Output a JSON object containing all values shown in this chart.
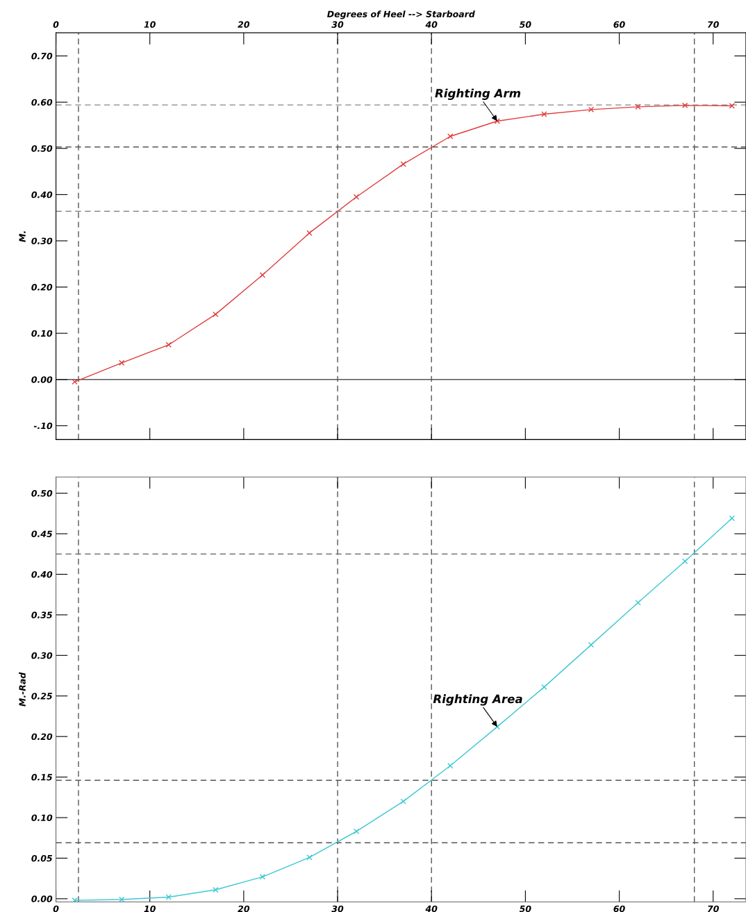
{
  "chart_data": [
    {
      "type": "line",
      "x2label": "Degrees of Heel --> Starboard",
      "ylabel": "M.",
      "x": [
        2,
        7,
        12,
        17,
        22,
        27,
        32,
        37,
        42,
        47,
        52,
        57,
        62,
        67,
        72
      ],
      "series": [
        {
          "color": "#e03c3c",
          "values": [
            -0.005,
            0.036,
            0.075,
            0.141,
            0.226,
            0.317,
            0.395,
            0.466,
            0.526,
            0.559,
            0.574,
            0.584,
            0.59,
            0.593,
            0.592
          ]
        }
      ],
      "marker": "cross",
      "xlim": [
        0,
        73.5
      ],
      "x2lim": [
        0,
        73.5
      ],
      "x2ticks": [
        0,
        10,
        20,
        30,
        40,
        50,
        60,
        70
      ],
      "ylim": [
        -0.13,
        0.75
      ],
      "yticks": [
        {
          "value": -0.1,
          "label": "-.10"
        },
        {
          "value": 0,
          "label": "0.00"
        },
        {
          "value": 0.1,
          "label": "0.10"
        },
        {
          "value": 0.2,
          "label": "0.20"
        },
        {
          "value": 0.3,
          "label": "0.30"
        },
        {
          "value": 0.4,
          "label": "0.40"
        },
        {
          "value": 0.5,
          "label": "0.50"
        },
        {
          "value": 0.6,
          "label": "0.60"
        },
        {
          "value": 0.7,
          "label": "0.70"
        }
      ],
      "tick_labels": "y",
      "ref_lines": [
        {
          "axis": "x",
          "value": 2.4,
          "color": "#555555",
          "line_style": "dashed"
        },
        {
          "axis": "x",
          "value": 30,
          "color": "#555555",
          "line_style": "dashed"
        },
        {
          "axis": "x",
          "value": 40,
          "color": "#555555",
          "line_style": "dashed"
        },
        {
          "axis": "x",
          "value": 68,
          "color": "#555555",
          "line_style": "dashed"
        },
        {
          "axis": "y",
          "value": 0.594,
          "color": "#999999",
          "line_style": "dashed"
        },
        {
          "axis": "y",
          "value": 0.503,
          "color": "#555555",
          "line_style": "dashed"
        },
        {
          "axis": "y",
          "value": 0.364,
          "color": "#777777",
          "line_style": "dashed"
        },
        {
          "axis": "y",
          "value": 0,
          "color": "#555555",
          "line_style": "solid"
        }
      ],
      "annotations": [
        {
          "text": "Righting Arm",
          "x": 47,
          "y": 0.559
        }
      ]
    },
    {
      "type": "line",
      "ylabel": "M.-Rad",
      "x": [
        2,
        7,
        12,
        17,
        22,
        27,
        32,
        37,
        42,
        47,
        52,
        57,
        62,
        67,
        72
      ],
      "series": [
        {
          "color": "#3cc8d2",
          "values": [
            -0.002,
            -0.001,
            0.002,
            0.011,
            0.027,
            0.051,
            0.083,
            0.12,
            0.164,
            0.212,
            0.261,
            0.313,
            0.365,
            0.416,
            0.469
          ]
        }
      ],
      "marker": "cross",
      "xlim": [
        0,
        73.5
      ],
      "xticks": [
        0,
        10,
        20,
        30,
        40,
        50,
        60,
        70
      ],
      "ylim": [
        -0.004,
        0.52
      ],
      "yticks": [
        {
          "value": 0,
          "label": "0.00"
        },
        {
          "value": 0.05,
          "label": "0.05"
        },
        {
          "value": 0.1,
          "label": "0.10"
        },
        {
          "value": 0.15,
          "label": "0.15"
        },
        {
          "value": 0.2,
          "label": "0.20"
        },
        {
          "value": 0.25,
          "label": "0.25"
        },
        {
          "value": 0.3,
          "label": "0.30"
        },
        {
          "value": 0.35,
          "label": "0.35"
        },
        {
          "value": 0.4,
          "label": "0.40"
        },
        {
          "value": 0.45,
          "label": "0.45"
        },
        {
          "value": 0.5,
          "label": "0.50"
        }
      ],
      "ref_lines": [
        {
          "axis": "x",
          "value": 2.4,
          "color": "#555555",
          "line_style": "dashed"
        },
        {
          "axis": "x",
          "value": 30,
          "color": "#555555",
          "line_style": "dashed"
        },
        {
          "axis": "x",
          "value": 40,
          "color": "#555555",
          "line_style": "dashed"
        },
        {
          "axis": "x",
          "value": 68,
          "color": "#555555",
          "line_style": "dashed"
        },
        {
          "axis": "y",
          "value": 0.425,
          "color": "#777777",
          "line_style": "dashed"
        },
        {
          "axis": "y",
          "value": 0.146,
          "color": "#555555",
          "line_style": "dashed"
        },
        {
          "axis": "y",
          "value": 0.069,
          "color": "#555555",
          "line_style": "dashed"
        }
      ],
      "annotations": [
        {
          "text": "Righting Area",
          "x": 47,
          "y": 0.212
        }
      ]
    }
  ]
}
